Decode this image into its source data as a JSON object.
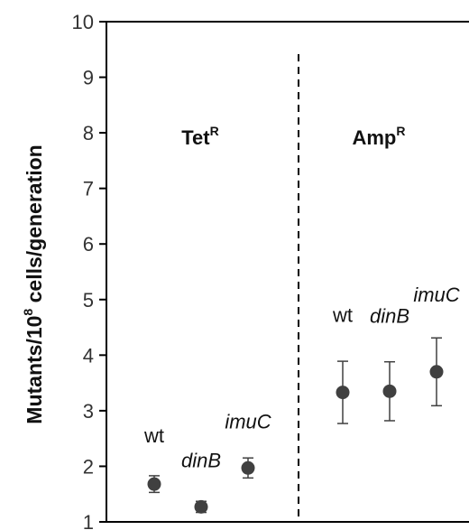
{
  "chart_data": {
    "type": "scatter",
    "title": "",
    "ylabel_main": "Mutants/10",
    "ylabel_sup": "8",
    "ylabel_rest": " cells/generation",
    "ylim": [
      1,
      10
    ],
    "yticks": [
      1,
      2,
      3,
      4,
      5,
      6,
      7,
      8,
      9,
      10
    ],
    "grid": false,
    "groups": [
      {
        "name_main": "Tet",
        "name_sup": "R"
      },
      {
        "name_main": "Amp",
        "name_sup": "R"
      }
    ],
    "points": [
      {
        "group": 0,
        "label": "wt",
        "italic": false,
        "y": 1.68,
        "err": 0.15
      },
      {
        "group": 0,
        "label": "dinB",
        "italic": true,
        "y": 1.27,
        "err": 0.1
      },
      {
        "group": 0,
        "label": "imuC",
        "italic": true,
        "y": 1.97,
        "err": 0.18
      },
      {
        "group": 1,
        "label": "wt",
        "italic": false,
        "y": 3.33,
        "err": 0.56
      },
      {
        "group": 1,
        "label": "dinB",
        "italic": true,
        "y": 3.35,
        "err": 0.53
      },
      {
        "group": 1,
        "label": "imuC",
        "italic": true,
        "y": 3.7,
        "err": 0.61
      }
    ],
    "colors": {
      "marker": "#404040",
      "axis": "#000000"
    }
  }
}
